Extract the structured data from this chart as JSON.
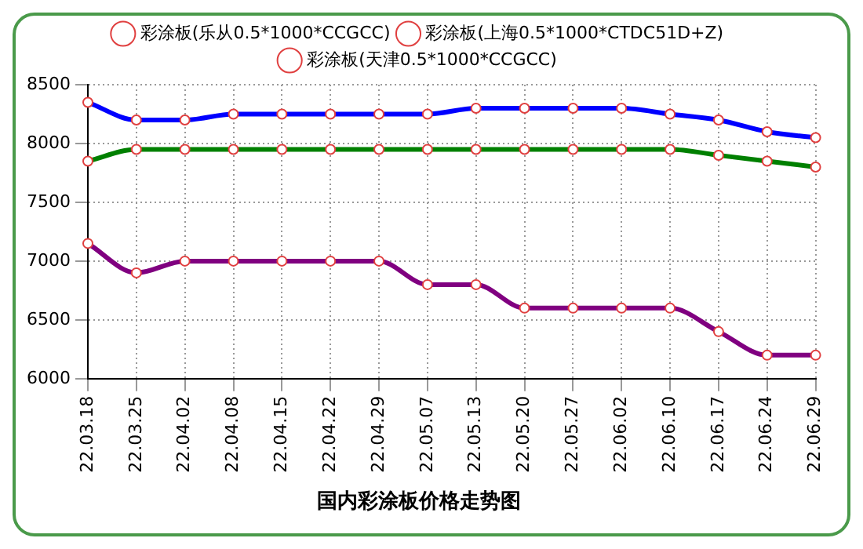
{
  "chart_data": {
    "type": "line",
    "title": "国内彩涂板价格走势图",
    "categories": [
      "22.03.18",
      "22.03.25",
      "22.04.02",
      "22.04.08",
      "22.04.15",
      "22.04.22",
      "22.04.29",
      "22.05.07",
      "22.05.13",
      "22.05.20",
      "22.05.27",
      "22.06.02",
      "22.06.10",
      "22.06.17",
      "22.06.24",
      "22.06.29"
    ],
    "series": [
      {
        "name": "彩涂板(乐从0.5*1000*CCGCC)",
        "color": "#008000",
        "values": [
          7850,
          7950,
          7950,
          7950,
          7950,
          7950,
          7950,
          7950,
          7950,
          7950,
          7950,
          7950,
          7950,
          7900,
          7850,
          7800
        ]
      },
      {
        "name": "彩涂板(上海0.5*1000*CTDC51D+Z)",
        "color": "#0000ff",
        "values": [
          8350,
          8200,
          8200,
          8250,
          8250,
          8250,
          8250,
          8250,
          8300,
          8300,
          8300,
          8300,
          8250,
          8200,
          8100,
          8050
        ]
      },
      {
        "name": "彩涂板(天津0.5*1000*CCGCC)",
        "color": "#800080",
        "values": [
          7150,
          6900,
          7000,
          7000,
          7000,
          7000,
          7000,
          6800,
          6800,
          6600,
          6600,
          6600,
          6600,
          6400,
          6200,
          6200
        ]
      }
    ],
    "ylim": [
      6000,
      8500
    ],
    "yticks": [
      6000,
      6500,
      7000,
      7500,
      8000,
      8500
    ],
    "grid": true,
    "legend": "top",
    "marker": "circle",
    "line_style": "solid"
  }
}
